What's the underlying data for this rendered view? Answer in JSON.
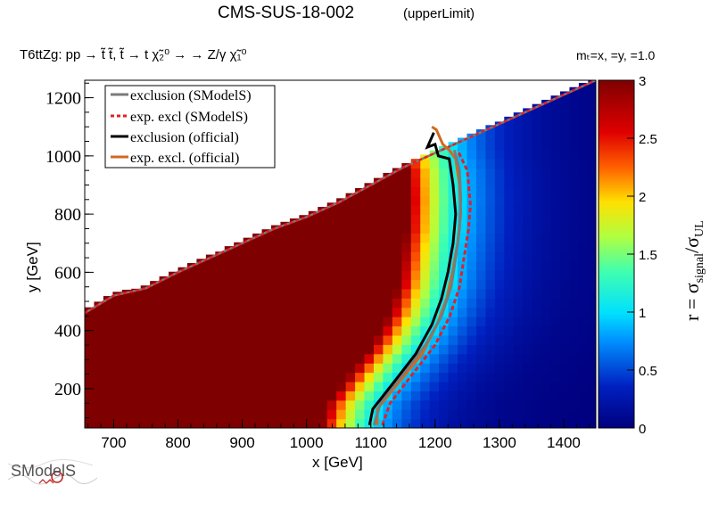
{
  "header": {
    "title": "CMS-SUS-18-002",
    "subtitle": "(upperLimit)",
    "process_label": "T6ttZg: pp  → t̃ t̃, t̃  → t χ̃₂⁰ → → Z/γ χ̃₁⁰",
    "mass_condition": "mₜ=x, =y, =1.0"
  },
  "logo": {
    "text": "SModelS"
  },
  "colors": {
    "smodels_exclusion": "#7a7a7a",
    "smodels_expected": "#e0202a",
    "official_exclusion": "#000000",
    "official_expected": "#d2691e"
  },
  "chart_data": {
    "type": "heatmap",
    "title": "CMS-SUS-18-002",
    "xlabel": "x [GeV]",
    "ylabel": "y [GeV]",
    "zlabel": "r = σsignal/σUL",
    "xlim": [
      655,
      1450
    ],
    "ylim": [
      65,
      1260
    ],
    "zlim": [
      0,
      3
    ],
    "x_ticks": [
      "700",
      "800",
      "900",
      "1000",
      "1100",
      "1200",
      "1300",
      "1400"
    ],
    "y_ticks": [
      "200",
      "400",
      "600",
      "800",
      "1000",
      "1200"
    ],
    "z_ticks": [
      "0",
      "0.5",
      "1",
      "1.5",
      "2",
      "2.5",
      "3"
    ],
    "grid": false,
    "legend_position": "top-left",
    "colormap": "rainbow (blue → cyan → green → yellow → red → dark red)",
    "diagonal_boundary": [
      [
        655,
        460
      ],
      [
        700,
        520
      ],
      [
        750,
        545
      ],
      [
        800,
        600
      ],
      [
        850,
        650
      ],
      [
        900,
        700
      ],
      [
        950,
        750
      ],
      [
        1000,
        790
      ],
      [
        1050,
        840
      ],
      [
        1100,
        900
      ],
      [
        1150,
        960
      ],
      [
        1200,
        1010
      ],
      [
        1250,
        1060
      ],
      [
        1300,
        1110
      ],
      [
        1350,
        1160
      ],
      [
        1400,
        1210
      ],
      [
        1450,
        1260
      ]
    ],
    "series": [
      {
        "name": "exclusion (SModelS)",
        "points": [
          [
            1105,
            75
          ],
          [
            1115,
            150
          ],
          [
            1150,
            250
          ],
          [
            1185,
            350
          ],
          [
            1210,
            450
          ],
          [
            1225,
            550
          ],
          [
            1232,
            650
          ],
          [
            1238,
            750
          ],
          [
            1240,
            850
          ],
          [
            1238,
            950
          ],
          [
            1230,
            1020
          ]
        ]
      },
      {
        "name": "exp. excl (SModelS)",
        "points": [
          [
            1118,
            75
          ],
          [
            1130,
            150
          ],
          [
            1165,
            250
          ],
          [
            1200,
            350
          ],
          [
            1223,
            450
          ],
          [
            1238,
            550
          ],
          [
            1245,
            650
          ],
          [
            1252,
            750
          ],
          [
            1255,
            830
          ],
          [
            1250,
            950
          ],
          [
            1235,
            1020
          ]
        ]
      },
      {
        "name": "exclusion (official)",
        "points": [
          [
            1098,
            75
          ],
          [
            1103,
            130
          ],
          [
            1135,
            220
          ],
          [
            1170,
            320
          ],
          [
            1195,
            420
          ],
          [
            1210,
            510
          ],
          [
            1220,
            600
          ],
          [
            1228,
            700
          ],
          [
            1232,
            800
          ],
          [
            1228,
            900
          ],
          [
            1222,
            990
          ],
          [
            1205,
            1000
          ],
          [
            1200,
            1040
          ],
          [
            1188,
            1030
          ],
          [
            1198,
            1080
          ]
        ]
      },
      {
        "name": "exp. excl. (official)",
        "points": [
          [
            1110,
            75
          ],
          [
            1110,
            130
          ],
          [
            1143,
            220
          ],
          [
            1180,
            320
          ],
          [
            1203,
            420
          ],
          [
            1218,
            510
          ],
          [
            1227,
            600
          ],
          [
            1235,
            700
          ],
          [
            1240,
            800
          ],
          [
            1238,
            900
          ],
          [
            1232,
            990
          ],
          [
            1222,
            1020
          ],
          [
            1212,
            1040
          ],
          [
            1202,
            1090
          ],
          [
            1195,
            1100
          ]
        ]
      }
    ]
  }
}
